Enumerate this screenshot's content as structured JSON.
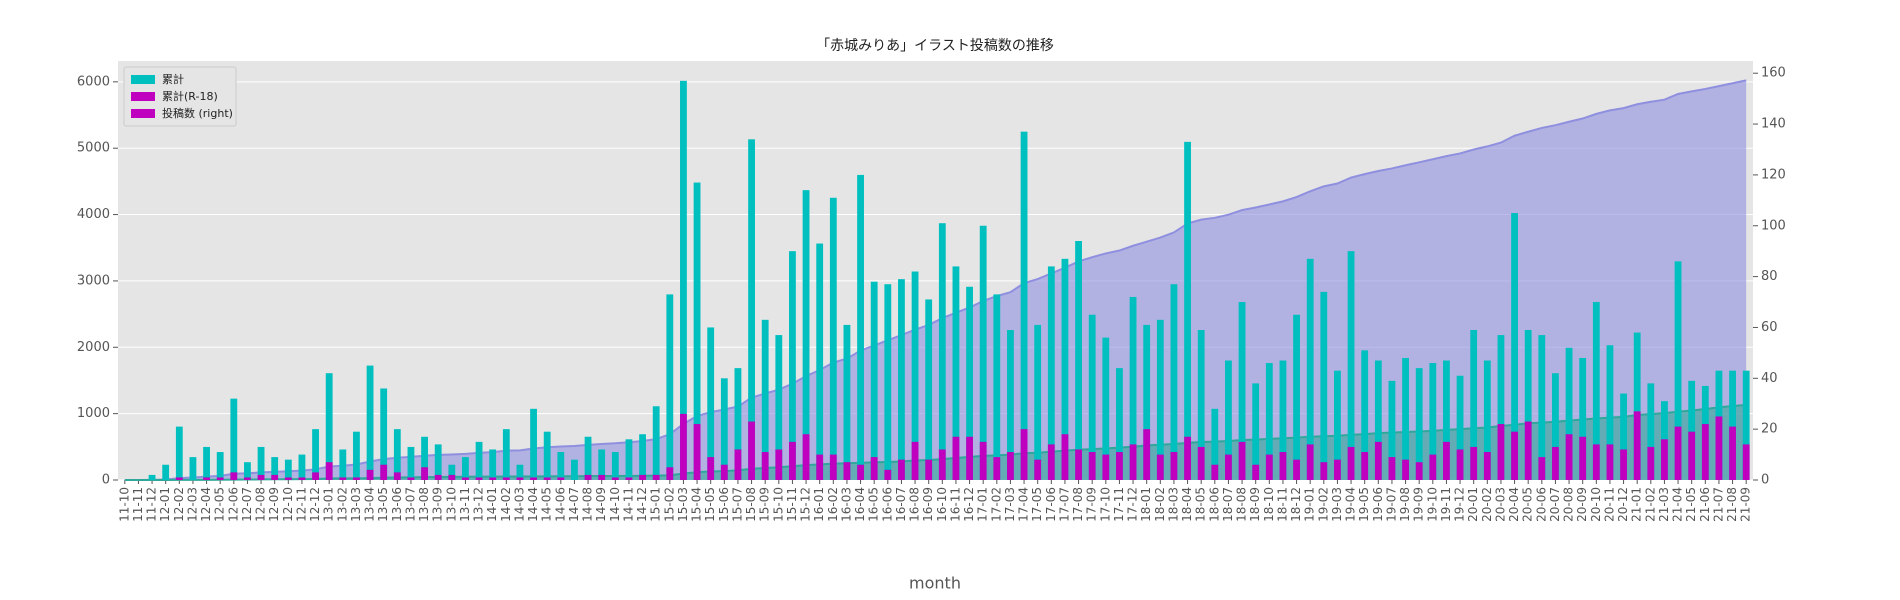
{
  "chart_data": {
    "type": "bar",
    "title": "「赤城みりあ」イラスト投稿数の推移",
    "xlabel": "month",
    "categories": [
      "11-10",
      "11-11",
      "11-12",
      "12-01",
      "12-02",
      "12-03",
      "12-04",
      "12-05",
      "12-06",
      "12-07",
      "12-08",
      "12-09",
      "12-10",
      "12-11",
      "12-12",
      "13-01",
      "13-02",
      "13-03",
      "13-04",
      "13-05",
      "13-06",
      "13-07",
      "13-08",
      "13-09",
      "13-10",
      "13-11",
      "13-12",
      "14-01",
      "14-02",
      "14-03",
      "14-04",
      "14-05",
      "14-06",
      "14-07",
      "14-08",
      "14-09",
      "14-10",
      "14-11",
      "14-12",
      "15-01",
      "15-02",
      "15-03",
      "15-04",
      "15-05",
      "15-06",
      "15-07",
      "15-08",
      "15-09",
      "15-10",
      "15-11",
      "15-12",
      "16-01",
      "16-02",
      "16-03",
      "16-04",
      "16-05",
      "16-06",
      "16-07",
      "16-08",
      "16-09",
      "16-10",
      "16-11",
      "16-12",
      "17-01",
      "17-02",
      "17-03",
      "17-04",
      "17-05",
      "17-06",
      "17-07",
      "17-08",
      "17-09",
      "17-10",
      "17-11",
      "17-12",
      "18-01",
      "18-02",
      "18-03",
      "18-04",
      "18-05",
      "18-06",
      "18-07",
      "18-08",
      "18-09",
      "18-10",
      "18-11",
      "18-12",
      "19-01",
      "19-02",
      "19-03",
      "19-04",
      "19-05",
      "19-06",
      "19-07",
      "19-08",
      "19-09",
      "19-10",
      "19-11",
      "19-12",
      "20-01",
      "20-02",
      "20-03",
      "20-04",
      "20-05",
      "20-06",
      "20-07",
      "20-08",
      "20-09",
      "20-10",
      "20-11",
      "20-12",
      "21-01",
      "21-02",
      "21-03",
      "21-04",
      "21-05",
      "21-06",
      "21-07",
      "21-08",
      "21-09"
    ],
    "series": [
      {
        "kind": "area",
        "color": "#8f8fe0",
        "values": [
          0,
          0,
          2,
          8,
          29,
          38,
          51,
          62,
          94,
          101,
          114,
          123,
          131,
          141,
          161,
          203,
          215,
          234,
          279,
          315,
          335,
          348,
          365,
          379,
          385,
          394,
          409,
          421,
          441,
          447,
          475,
          494,
          505,
          513,
          530,
          542,
          553,
          569,
          587,
          616,
          689,
          846,
          963,
          1023,
          1063,
          1107,
          1241,
          1304,
          1361,
          1451,
          1565,
          1658,
          1769,
          1830,
          1950,
          2028,
          2105,
          2184,
          2266,
          2337,
          2438,
          2522,
          2598,
          2698,
          2771,
          2830,
          2967,
          3028,
          3112,
          3199,
          3293,
          3358,
          3414,
          3458,
          3530,
          3591,
          3654,
          3731,
          3864,
          3923,
          3951,
          3998,
          4068,
          4106,
          4152,
          4199,
          4264,
          4351,
          4425,
          4468,
          4558,
          4609,
          4656,
          4695,
          4743,
          4787,
          4833,
          4880,
          4921,
          4980,
          5027,
          5084,
          5189,
          5248,
          5305,
          5347,
          5399,
          5447,
          5517,
          5570,
          5604,
          5662,
          5700,
          5731,
          5817,
          5856,
          5893,
          5936,
          5979,
          6022
        ]
      },
      {
        "kind": "area",
        "color": "#2fa89a",
        "values": [
          0,
          0,
          0,
          0,
          1,
          1,
          2,
          3,
          6,
          7,
          9,
          11,
          12,
          13,
          16,
          23,
          24,
          25,
          29,
          35,
          38,
          39,
          44,
          46,
          48,
          49,
          50,
          51,
          52,
          53,
          54,
          55,
          56,
          56,
          58,
          60,
          61,
          62,
          64,
          66,
          71,
          97,
          119,
          128,
          134,
          146,
          169,
          180,
          192,
          207,
          225,
          235,
          245,
          252,
          258,
          267,
          271,
          279,
          294,
          302,
          314,
          331,
          348,
          363,
          372,
          383,
          403,
          411,
          425,
          443,
          455,
          466,
          476,
          487,
          501,
          521,
          531,
          542,
          559,
          572,
          578,
          588,
          603,
          609,
          619,
          630,
          638,
          652,
          659,
          667,
          680,
          691,
          706,
          715,
          723,
          730,
          740,
          755,
          767,
          780,
          791,
          813,
          832,
          855,
          864,
          877,
          895,
          912,
          926,
          940,
          952,
          979,
          992,
          1008,
          1029,
          1048,
          1070,
          1095,
          1116,
          1130
        ]
      },
      {
        "kind": "bar",
        "axis": "y2",
        "color": "#00bfbf",
        "values": [
          0,
          0,
          2,
          6,
          21,
          9,
          13,
          11,
          32,
          7,
          13,
          9,
          8,
          10,
          20,
          42,
          12,
          19,
          45,
          36,
          20,
          13,
          17,
          14,
          6,
          9,
          15,
          12,
          20,
          6,
          28,
          19,
          11,
          8,
          17,
          12,
          11,
          16,
          18,
          29,
          73,
          157,
          117,
          60,
          40,
          44,
          134,
          63,
          57,
          90,
          114,
          93,
          111,
          61,
          120,
          78,
          77,
          79,
          82,
          71,
          101,
          84,
          76,
          100,
          73,
          59,
          137,
          61,
          84,
          87,
          94,
          65,
          56,
          44,
          72,
          61,
          63,
          77,
          133,
          59,
          28,
          47,
          70,
          38,
          46,
          47,
          65,
          87,
          74,
          43,
          90,
          51,
          47,
          39,
          48,
          44,
          46,
          47,
          41,
          59,
          47,
          57,
          105,
          59,
          57,
          42,
          52,
          48,
          70,
          53,
          34,
          58,
          38,
          31,
          86,
          39,
          37,
          43,
          43,
          43
        ]
      },
      {
        "kind": "bar",
        "axis": "y2",
        "color": "#bf00bf",
        "values": [
          0,
          0,
          0,
          0,
          1,
          0,
          1,
          1,
          3,
          1,
          2,
          2,
          1,
          1,
          3,
          7,
          1,
          1,
          4,
          6,
          3,
          1,
          5,
          2,
          2,
          1,
          1,
          1,
          1,
          1,
          1,
          1,
          1,
          0,
          2,
          2,
          1,
          1,
          2,
          2,
          5,
          26,
          22,
          9,
          6,
          12,
          23,
          11,
          12,
          15,
          18,
          10,
          10,
          7,
          6,
          9,
          4,
          8,
          15,
          8,
          12,
          17,
          17,
          15,
          9,
          11,
          20,
          8,
          14,
          18,
          12,
          11,
          10,
          11,
          14,
          20,
          10,
          11,
          17,
          13,
          6,
          10,
          15,
          6,
          10,
          11,
          8,
          14,
          7,
          8,
          13,
          11,
          15,
          9,
          8,
          7,
          10,
          15,
          12,
          13,
          11,
          22,
          19,
          23,
          9,
          13,
          18,
          17,
          14,
          14,
          12,
          27,
          13,
          16,
          21,
          19,
          22,
          25,
          21,
          14
        ]
      }
    ],
    "legend": [
      {
        "label": "累計",
        "color": "#00bfbf"
      },
      {
        "label": "累計(R-18)",
        "color": "#bf00bf"
      },
      {
        "label": "投稿数 (right)",
        "color": "#bf00bf"
      }
    ],
    "legend_loc": "upper left",
    "ylim": [
      0,
      6314
    ],
    "yticks": [
      0,
      1000,
      2000,
      3000,
      4000,
      5000,
      6000
    ],
    "y2lim": [
      0,
      164.8
    ],
    "y2ticks": [
      0,
      20,
      40,
      60,
      80,
      100,
      120,
      140,
      160
    ],
    "grid": true
  }
}
